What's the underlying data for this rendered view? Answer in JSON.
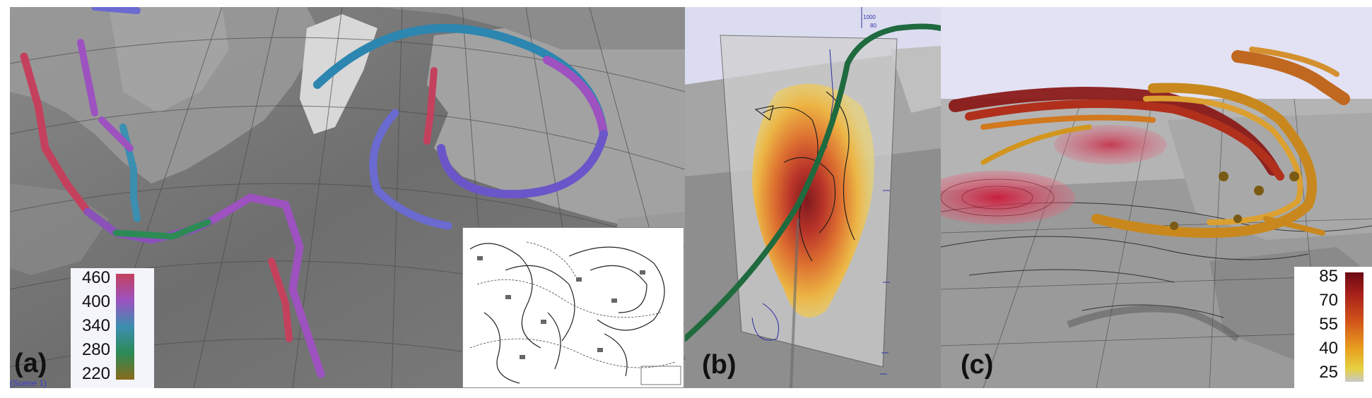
{
  "panel_a": {
    "label": "(a)",
    "scene_label": "(Scene 1)",
    "colorbar": {
      "ticks": [
        "460",
        "400",
        "340",
        "280",
        "220"
      ],
      "colors": [
        "#c4415e",
        "#9d52c0",
        "#3b8fb0",
        "#2c8a55",
        "#8a6a1a"
      ]
    }
  },
  "panel_b": {
    "label": "(b)",
    "axis_ticks": [
      "1000",
      "80"
    ]
  },
  "panel_c": {
    "label": "(c)",
    "colorbar": {
      "ticks": [
        "85",
        "70",
        "55",
        "40",
        "25"
      ],
      "colors": [
        "#6b0a12",
        "#a8201a",
        "#d2551a",
        "#e8a020",
        "#e6d040",
        "#c8c8c8"
      ]
    }
  }
}
